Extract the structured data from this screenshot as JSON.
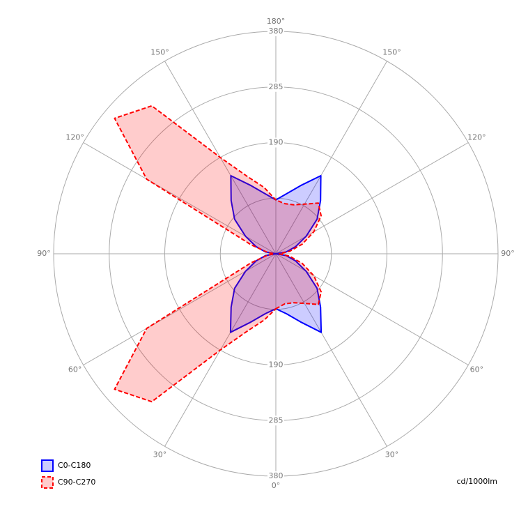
{
  "chart_data": {
    "type": "polar",
    "unit_label": "cd/1000lm",
    "x": [
      0,
      10,
      20,
      30,
      40,
      50,
      60,
      70,
      80,
      90,
      100,
      110,
      120,
      130,
      140,
      150,
      160,
      170,
      180,
      190,
      200,
      210,
      220,
      230,
      240,
      250,
      260,
      270,
      280,
      290,
      300,
      310,
      320,
      330,
      340,
      350,
      360
    ],
    "series": [
      {
        "name": "C0-C180",
        "color": "#0000ff",
        "dashed": false,
        "values": [
          94,
          104,
          124,
          155,
          119,
          92,
          60,
          36,
          18,
          0,
          18,
          36,
          60,
          92,
          119,
          154,
          124,
          104,
          92,
          104,
          124,
          154,
          119,
          92,
          60,
          36,
          18,
          0,
          18,
          36,
          60,
          92,
          119,
          155,
          124,
          104,
          94
        ]
      },
      {
        "name": "C90-C270",
        "color": "#ff0000",
        "dashed": true,
        "values": [
          94,
          87,
          89,
          98,
          113,
          101,
          75,
          48,
          24,
          6,
          24,
          48,
          75,
          101,
          113,
          98,
          89,
          87,
          92,
          115,
          140,
          190,
          330,
          360,
          255,
          45,
          15,
          3,
          15,
          45,
          255,
          360,
          330,
          190,
          140,
          115,
          94
        ]
      }
    ],
    "rlim": [
      0,
      380
    ],
    "rticks": [
      {
        "value": 95,
        "label": null
      },
      190,
      285,
      380
    ],
    "angle_ticks": [
      {
        "value": 0,
        "label": "0°"
      },
      {
        "value": 30,
        "label": "30°"
      },
      {
        "value": 60,
        "label": "60°"
      },
      {
        "value": 90,
        "label": "90°"
      },
      {
        "value": 120,
        "label": "120°"
      },
      {
        "value": 150,
        "label": "150°"
      },
      {
        "value": 180,
        "label": "180°"
      },
      {
        "value": 210,
        "label": "150°"
      },
      {
        "value": 240,
        "label": "120°"
      },
      {
        "value": 270,
        "label": "90°"
      },
      {
        "value": 300,
        "label": "60°"
      },
      {
        "value": 330,
        "label": "30°"
      }
    ],
    "legend": "bottom-left"
  }
}
